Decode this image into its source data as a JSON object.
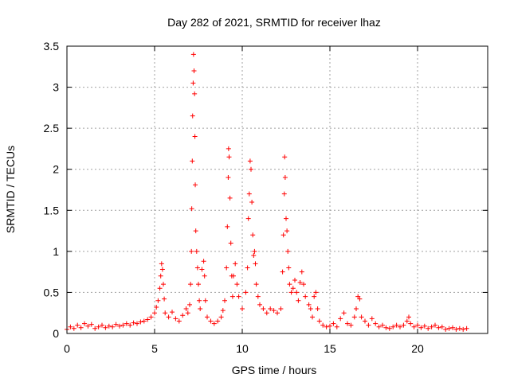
{
  "chart_data": {
    "type": "scatter",
    "title": "Day 282 of 2021, SRMTID for receiver lhaz",
    "xlabel": "GPS time / hours",
    "ylabel": "SRMTID / TECUs",
    "xlim": [
      0,
      24
    ],
    "ylim": [
      0,
      3.5
    ],
    "xticks": [
      0,
      5,
      10,
      15,
      20
    ],
    "xtick_labels": [
      "0",
      "5",
      "10",
      "15",
      "20"
    ],
    "yticks": [
      0,
      0.5,
      1,
      1.5,
      2,
      2.5,
      3,
      3.5
    ],
    "ytick_labels": [
      "0",
      "0.5",
      "1",
      "1.5",
      "2",
      "2.5",
      "3",
      "3.5"
    ],
    "grid": true,
    "marker": "+",
    "color": "#ff0000",
    "series": [
      {
        "name": "SRMTID",
        "points": [
          [
            0.0,
            0.05
          ],
          [
            0.2,
            0.08
          ],
          [
            0.4,
            0.06
          ],
          [
            0.6,
            0.1
          ],
          [
            0.8,
            0.07
          ],
          [
            1.0,
            0.12
          ],
          [
            1.2,
            0.09
          ],
          [
            1.4,
            0.11
          ],
          [
            1.6,
            0.06
          ],
          [
            1.8,
            0.08
          ],
          [
            2.0,
            0.1
          ],
          [
            2.2,
            0.07
          ],
          [
            2.4,
            0.09
          ],
          [
            2.6,
            0.08
          ],
          [
            2.8,
            0.11
          ],
          [
            3.0,
            0.09
          ],
          [
            3.2,
            0.1
          ],
          [
            3.4,
            0.12
          ],
          [
            3.6,
            0.1
          ],
          [
            3.8,
            0.13
          ],
          [
            4.0,
            0.12
          ],
          [
            4.2,
            0.14
          ],
          [
            4.4,
            0.15
          ],
          [
            4.6,
            0.17
          ],
          [
            4.8,
            0.2
          ],
          [
            5.0,
            0.25
          ],
          [
            5.1,
            0.32
          ],
          [
            5.2,
            0.4
          ],
          [
            5.3,
            0.55
          ],
          [
            5.35,
            0.7
          ],
          [
            5.4,
            0.85
          ],
          [
            5.45,
            0.78
          ],
          [
            5.5,
            0.6
          ],
          [
            5.55,
            0.42
          ],
          [
            5.6,
            0.25
          ],
          [
            5.8,
            0.2
          ],
          [
            6.0,
            0.26
          ],
          [
            6.2,
            0.18
          ],
          [
            6.4,
            0.15
          ],
          [
            6.6,
            0.22
          ],
          [
            6.8,
            0.3
          ],
          [
            6.9,
            0.25
          ],
          [
            7.0,
            0.35
          ],
          [
            7.05,
            0.6
          ],
          [
            7.1,
            1.0
          ],
          [
            7.12,
            1.52
          ],
          [
            7.15,
            2.1
          ],
          [
            7.17,
            2.65
          ],
          [
            7.2,
            3.05
          ],
          [
            7.22,
            3.4
          ],
          [
            7.25,
            3.2
          ],
          [
            7.28,
            2.92
          ],
          [
            7.3,
            2.4
          ],
          [
            7.32,
            1.81
          ],
          [
            7.35,
            1.25
          ],
          [
            7.4,
            1.0
          ],
          [
            7.45,
            0.8
          ],
          [
            7.5,
            0.6
          ],
          [
            7.55,
            0.4
          ],
          [
            7.6,
            0.3
          ],
          [
            7.7,
            0.78
          ],
          [
            7.8,
            0.88
          ],
          [
            7.85,
            0.7
          ],
          [
            7.9,
            0.4
          ],
          [
            8.0,
            0.2
          ],
          [
            8.2,
            0.15
          ],
          [
            8.4,
            0.12
          ],
          [
            8.6,
            0.15
          ],
          [
            8.8,
            0.2
          ],
          [
            8.9,
            0.28
          ],
          [
            9.0,
            0.4
          ],
          [
            9.1,
            0.8
          ],
          [
            9.15,
            1.3
          ],
          [
            9.2,
            1.9
          ],
          [
            9.22,
            2.25
          ],
          [
            9.25,
            2.15
          ],
          [
            9.3,
            1.65
          ],
          [
            9.35,
            1.1
          ],
          [
            9.4,
            0.7
          ],
          [
            9.45,
            0.45
          ],
          [
            9.5,
            0.7
          ],
          [
            9.6,
            0.85
          ],
          [
            9.7,
            0.6
          ],
          [
            9.8,
            0.45
          ],
          [
            10.0,
            0.3
          ],
          [
            10.2,
            0.5
          ],
          [
            10.3,
            0.8
          ],
          [
            10.35,
            1.4
          ],
          [
            10.4,
            1.7
          ],
          [
            10.45,
            2.1
          ],
          [
            10.5,
            2.0
          ],
          [
            10.55,
            1.6
          ],
          [
            10.6,
            1.2
          ],
          [
            10.65,
            0.95
          ],
          [
            10.7,
            1.0
          ],
          [
            10.75,
            0.85
          ],
          [
            10.8,
            0.6
          ],
          [
            10.9,
            0.45
          ],
          [
            11.0,
            0.35
          ],
          [
            11.2,
            0.3
          ],
          [
            11.4,
            0.25
          ],
          [
            11.6,
            0.3
          ],
          [
            11.8,
            0.28
          ],
          [
            12.0,
            0.25
          ],
          [
            12.2,
            0.3
          ],
          [
            12.3,
            0.75
          ],
          [
            12.35,
            1.2
          ],
          [
            12.4,
            1.7
          ],
          [
            12.42,
            2.15
          ],
          [
            12.45,
            1.9
          ],
          [
            12.5,
            1.4
          ],
          [
            12.55,
            1.25
          ],
          [
            12.6,
            1.0
          ],
          [
            12.65,
            0.8
          ],
          [
            12.7,
            0.6
          ],
          [
            12.8,
            0.5
          ],
          [
            12.9,
            0.55
          ],
          [
            13.0,
            0.65
          ],
          [
            13.1,
            0.5
          ],
          [
            13.2,
            0.4
          ],
          [
            13.3,
            0.62
          ],
          [
            13.4,
            0.75
          ],
          [
            13.5,
            0.6
          ],
          [
            13.6,
            0.45
          ],
          [
            13.8,
            0.35
          ],
          [
            13.9,
            0.3
          ],
          [
            14.0,
            0.2
          ],
          [
            14.1,
            0.45
          ],
          [
            14.2,
            0.5
          ],
          [
            14.3,
            0.3
          ],
          [
            14.4,
            0.15
          ],
          [
            14.6,
            0.1
          ],
          [
            14.8,
            0.08
          ],
          [
            15.0,
            0.09
          ],
          [
            15.2,
            0.12
          ],
          [
            15.4,
            0.08
          ],
          [
            15.6,
            0.18
          ],
          [
            15.8,
            0.25
          ],
          [
            16.0,
            0.12
          ],
          [
            16.2,
            0.1
          ],
          [
            16.4,
            0.2
          ],
          [
            16.5,
            0.3
          ],
          [
            16.6,
            0.45
          ],
          [
            16.7,
            0.42
          ],
          [
            16.8,
            0.2
          ],
          [
            17.0,
            0.15
          ],
          [
            17.2,
            0.1
          ],
          [
            17.4,
            0.18
          ],
          [
            17.6,
            0.12
          ],
          [
            17.8,
            0.08
          ],
          [
            18.0,
            0.1
          ],
          [
            18.2,
            0.07
          ],
          [
            18.4,
            0.06
          ],
          [
            18.6,
            0.08
          ],
          [
            18.8,
            0.1
          ],
          [
            19.0,
            0.08
          ],
          [
            19.2,
            0.1
          ],
          [
            19.4,
            0.15
          ],
          [
            19.5,
            0.2
          ],
          [
            19.6,
            0.12
          ],
          [
            19.8,
            0.08
          ],
          [
            20.0,
            0.1
          ],
          [
            20.2,
            0.07
          ],
          [
            20.4,
            0.09
          ],
          [
            20.6,
            0.06
          ],
          [
            20.8,
            0.08
          ],
          [
            21.0,
            0.1
          ],
          [
            21.2,
            0.07
          ],
          [
            21.4,
            0.08
          ],
          [
            21.6,
            0.05
          ],
          [
            21.8,
            0.06
          ],
          [
            22.0,
            0.07
          ],
          [
            22.2,
            0.05
          ],
          [
            22.4,
            0.06
          ],
          [
            22.6,
            0.05
          ],
          [
            22.8,
            0.06
          ]
        ]
      }
    ]
  }
}
